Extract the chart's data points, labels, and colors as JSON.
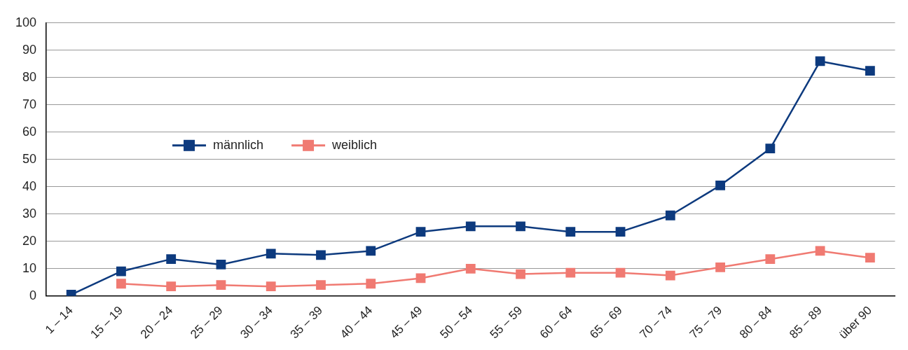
{
  "chart_data": {
    "type": "line",
    "categories": [
      "1 – 14",
      "15 – 19",
      "20 – 24",
      "25 – 29",
      "30 – 34",
      "35 – 39",
      "40 – 44",
      "45 – 49",
      "50 – 54",
      "55 – 59",
      "60 – 64",
      "65 – 69",
      "70 – 74",
      "75 – 79",
      "80 – 84",
      "85 – 89",
      "über 90"
    ],
    "series": [
      {
        "name": "männlich",
        "color": "#0d3a7e",
        "values": [
          0.5,
          9,
          13.5,
          11.5,
          15.5,
          15,
          16.5,
          23.5,
          25.5,
          25.5,
          23.5,
          23.5,
          29.5,
          40.5,
          54,
          86,
          82.5
        ]
      },
      {
        "name": "weiblich",
        "color": "#f07a72",
        "values": [
          null,
          4.5,
          3.5,
          4,
          3.5,
          4,
          4.5,
          6.5,
          10,
          8,
          8.5,
          8.5,
          7.5,
          10.5,
          13.5,
          16.5,
          14
        ]
      }
    ],
    "ylim": [
      0,
      100
    ],
    "yticks": [
      0,
      10,
      20,
      30,
      40,
      50,
      60,
      70,
      80,
      90,
      100
    ],
    "grid": "y",
    "legend": "left",
    "marker": "square",
    "line_style": "solid"
  }
}
